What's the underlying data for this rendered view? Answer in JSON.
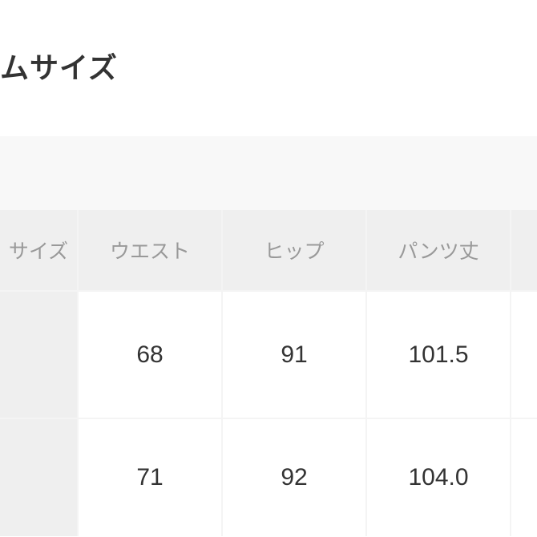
{
  "title": "ムサイズ",
  "table": {
    "headers": [
      "サイズ",
      "ウエスト",
      "ヒップ",
      "パンツ丈",
      ""
    ],
    "rows": [
      {
        "label": "",
        "values": [
          "68",
          "91",
          "101.5",
          ""
        ]
      },
      {
        "label": "",
        "values": [
          "71",
          "92",
          "104.0",
          ""
        ]
      }
    ]
  }
}
